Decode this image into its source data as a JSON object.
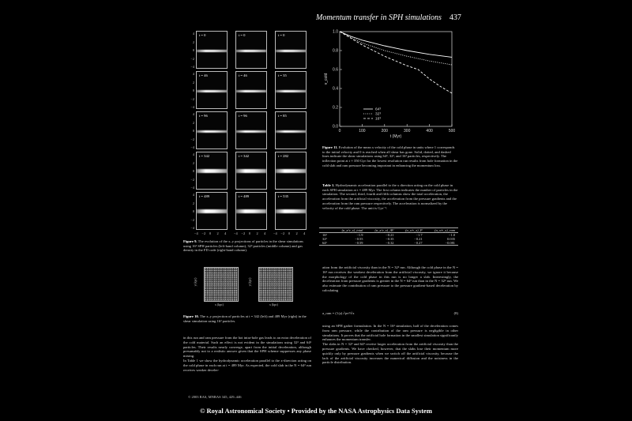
{
  "header": {
    "title": "Momentum transfer in SPH simulations",
    "page": "437"
  },
  "fig9": {
    "panel_rows": [
      [
        "t = 0",
        "t = 0",
        "t = 0"
      ],
      [
        "t = 46",
        "t = 46",
        "t = 35"
      ],
      [
        "t = 96",
        "t = 96",
        "t = 85"
      ],
      [
        "t = 342",
        "t = 342",
        "t = 282"
      ],
      [
        "t = 489",
        "t = 489",
        "t = 535"
      ]
    ],
    "yticks": [
      "4",
      "2",
      "0",
      "−2",
      "−4"
    ],
    "xticks": [
      "−4",
      "−2",
      "0",
      "2",
      "4"
    ],
    "caption_label": "Figure 9.",
    "caption": "The evolution of the x–y projections of particles in the shear simulations using 16³ SPH particles (left-hand column), 32³ particles (middle column) and gas density in the FD code (right-hand column)."
  },
  "fig10": {
    "ylabel": "y (kpc)",
    "xlabel": "x (kpc)",
    "caption_label": "Figure 10.",
    "caption": "The x–y projection of particles at t = 342 (left) and 489 Myr (right) in the shear simulation using 16³ particles."
  },
  "fig11": {
    "caption_label": "Figure 11.",
    "caption": "Evolution of the mean x velocity of the cold phase in units where 1 corresponds to the initial velocity and 0 is reached when all shear has gone. Solid, dotted, and dashed lines indicate the shear simulations using 64³, 32³, and 16³ particles, respectively. The inflection point at t ≈ 350 Gyr for the lowest resolution run results from hole formation in the cold slab and ram pressure becoming important in enhancing the momentum loss."
  },
  "chart_data": {
    "type": "line",
    "ylabel": "v_cold",
    "xlabel": "t (Myr)",
    "xlim": [
      0,
      500
    ],
    "ylim": [
      0.0,
      1.0
    ],
    "xticks": [
      0,
      100,
      200,
      300,
      400,
      500
    ],
    "yticks": [
      0.0,
      0.2,
      0.4,
      0.6,
      0.8,
      1.0
    ],
    "legend_position": "bottom-left",
    "series": [
      {
        "name": "64³",
        "style": "solid",
        "x": [
          0,
          50,
          100,
          200,
          300,
          400,
          500
        ],
        "y": [
          1.0,
          0.95,
          0.91,
          0.85,
          0.8,
          0.76,
          0.73
        ]
      },
      {
        "name": "32³",
        "style": "dotted",
        "x": [
          0,
          50,
          100,
          200,
          300,
          400,
          500
        ],
        "y": [
          1.0,
          0.94,
          0.88,
          0.8,
          0.74,
          0.69,
          0.65
        ]
      },
      {
        "name": "16³",
        "style": "dashed",
        "x": [
          0,
          50,
          100,
          200,
          300,
          350,
          400,
          450,
          500
        ],
        "y": [
          1.0,
          0.93,
          0.86,
          0.74,
          0.64,
          0.6,
          0.5,
          0.42,
          0.35
        ]
      }
    ]
  },
  "table1": {
    "title_label": "Table 1.",
    "title": "Hydrodynamic acceleration parallel to the x direction acting on the cold phase in each SPH simulation at t = 489 Myr. The first column indicates the number of particles in the simulation. The second, third, fourth and fifth columns show the total acceleration, the acceleration from the artificial viscosity, the acceleration from the pressure gradients and the acceleration from the ram pressure respectively. The acceleration is normalized by the velocity of the cold phase. The unit is Gyr⁻¹.",
    "headers": [
      "",
      "(a_x/v_x)_total",
      "(a_x/v_x)_AV",
      "(a_x/v_x)_P",
      "(a_x/v_x)_ram"
    ],
    "rows": [
      [
        "16³",
        "−1.9",
        "−0.21",
        "−1.7",
        "−1.0"
      ],
      [
        "32³",
        "−0.55",
        "−0.35",
        "−0.21",
        "0.035"
      ],
      [
        "64³",
        "−0.59",
        "−0.32",
        "−0.27",
        "−0.081"
      ]
    ]
  },
  "body": {
    "left_col": "in this run and ram pressure from the hot intra-hole gas leads to an extra deceleration of the cold material. Such an effect is not evident in the simulations using 32³ and 64³ particles. Their results nearly converge, apart from the initial deceleration, although presumably not to a realistic answer given that the SPH scheme suppresses any phase mixing.\n    In Table 1 we show the hydrodynamic acceleration parallel to the x-direction acting on the cold phase in each run at t = 489 Myr. As expected, the cold slab in the N = 64³ run receives weaker deceler-",
    "right_col_a": "ation from the artificial viscosity than in the N = 32³ run. Although the cold phase in the N = 16³ run receives the weakest deceleration from the artificial viscosity, we ignore it because the morphology of the cold phase in this run is no longer a slab. Interestingly, the deceleration from pressure gradients is greater in the N = 64³ run than in the N = 32³ run. We also estimate the contribution of ram pressure to the pressure gradient-based deceleration by calculating",
    "equation": "a_ram = (1/ρ) ∂ρv²/∂x",
    "equation_number": "(8)",
    "right_col_b": "using an SPH gather formulation. In the N = 16³ simulation, half of the deceleration comes from ram pressure, while the contribution of the ram pressure is negligible in other simulations. It proves that the artificial hole formation in the smallest simulation significantly enhances the momentum transfer.\n    The slabs in N = 32³ and 64³ receive larger acceleration from the artificial viscosity than the pressure gradients. We have checked, however, that the slabs lose their momentum more quickly only by pressure gradients when we switch off the artificial viscosity, because the lack of the artificial viscosity increases the numerical diffusion and the noisiness in the particle distribution."
  },
  "copyright": "© 2003 RAS, MNRAS 345, 429–446",
  "footer": "© Royal Astronomical Society  •  Provided by the NASA Astrophysics Data System"
}
